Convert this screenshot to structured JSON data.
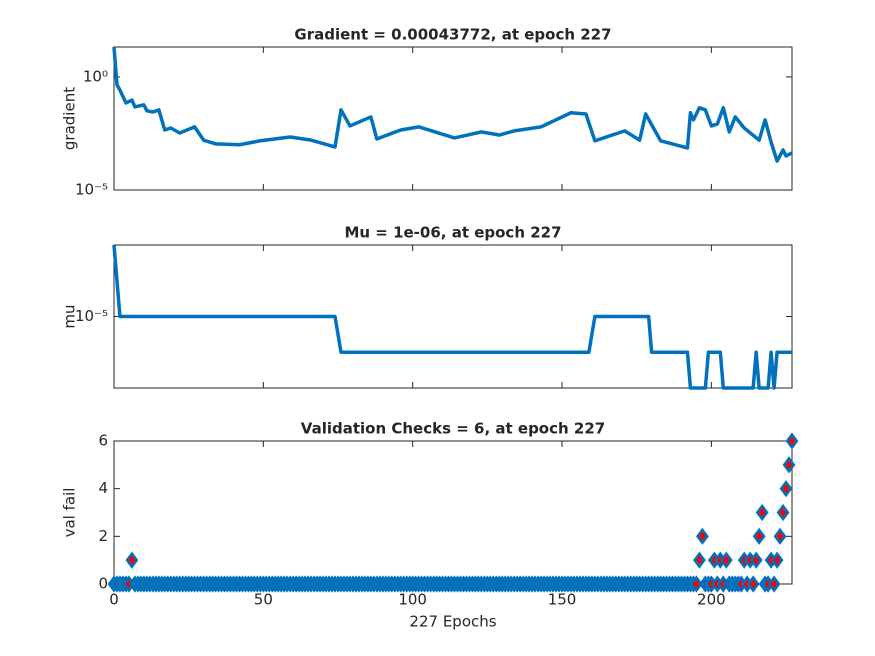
{
  "chart_data": [
    {
      "type": "line",
      "title": "Gradient = 0.00043772, at epoch 227",
      "ylabel": "gradient",
      "log": true,
      "color": "#0072BD",
      "xlim": [
        0,
        227
      ],
      "xticks": [
        0,
        50,
        100,
        150,
        200
      ],
      "xtick_labels": false,
      "ylim": [
        1e-05,
        21
      ],
      "yticks": [
        {
          "value": 1e-05,
          "label": "10⁻⁵"
        },
        {
          "value": 1,
          "label": "10⁰"
        }
      ],
      "x": [
        0,
        1,
        2,
        4,
        6,
        7,
        10,
        11,
        13,
        15,
        17,
        19,
        22,
        27,
        30,
        34,
        42,
        49,
        59,
        66,
        74,
        76,
        79,
        86,
        88,
        96,
        102,
        114,
        123,
        129,
        134,
        143,
        153,
        158,
        161,
        171,
        176,
        178,
        183,
        192,
        193,
        194,
        196,
        198,
        200,
        202,
        204,
        206,
        208,
        211,
        216,
        218,
        220,
        222,
        224,
        225,
        227
      ],
      "values": [
        21,
        0.45,
        0.26,
        0.071,
        0.095,
        0.047,
        0.058,
        0.032,
        0.028,
        0.035,
        0.0045,
        0.0055,
        0.0033,
        0.0062,
        0.0016,
        0.0011,
        0.001,
        0.0015,
        0.0022,
        0.0016,
        0.0008,
        0.035,
        0.0068,
        0.017,
        0.0018,
        0.0045,
        0.0062,
        0.002,
        0.0037,
        0.0027,
        0.0041,
        0.0062,
        0.026,
        0.023,
        0.0015,
        0.0041,
        0.0016,
        0.023,
        0.0015,
        0.00072,
        0.026,
        0.0126,
        0.043,
        0.035,
        0.0068,
        0.0083,
        0.043,
        0.0037,
        0.017,
        0.0055,
        0.0016,
        0.0126,
        0.0013,
        0.00019,
        0.00059,
        0.00032,
        0.00043772
      ]
    },
    {
      "type": "line",
      "title": "Mu = 1e-06, at epoch 227",
      "ylabel": "mu",
      "log": true,
      "color": "#0072BD",
      "xlim": [
        0,
        227
      ],
      "xticks": [
        0,
        50,
        100,
        150,
        200
      ],
      "xtick_labels": false,
      "ylim": [
        1e-07,
        0.001
      ],
      "yticks": [
        {
          "value": 1e-05,
          "label": "10⁻⁵"
        }
      ],
      "x": [
        0,
        2,
        74,
        76,
        159,
        161,
        179,
        180,
        192,
        193,
        198,
        199,
        203,
        204,
        214,
        215,
        216,
        219,
        220,
        221,
        222,
        227
      ],
      "values": [
        0.001,
        1e-05,
        1e-05,
        1e-06,
        1e-06,
        1e-05,
        1e-05,
        1e-06,
        1e-06,
        1e-07,
        1e-07,
        1e-06,
        1e-06,
        1e-07,
        1e-07,
        1e-06,
        1e-07,
        1e-07,
        1e-06,
        1e-07,
        1e-06,
        1e-06
      ]
    },
    {
      "type": "scatter",
      "title": "Validation Checks = 6, at epoch 227",
      "ylabel": "val fail",
      "xlabel": "227 Epochs",
      "log": false,
      "color": "#0072BD",
      "marker_face": "#FF0000",
      "xlim": [
        0,
        227
      ],
      "xticks": [
        0,
        50,
        100,
        150,
        200
      ],
      "xtick_labels": true,
      "ylim": [
        0,
        6
      ],
      "yticks": [
        0,
        2,
        4,
        6
      ],
      "x": [
        0,
        1,
        2,
        3,
        4,
        5,
        6,
        7,
        8,
        9,
        10,
        11,
        12,
        13,
        14,
        15,
        16,
        17,
        18,
        19,
        20,
        21,
        22,
        23,
        24,
        25,
        26,
        27,
        28,
        29,
        30,
        31,
        32,
        33,
        34,
        35,
        36,
        37,
        38,
        39,
        40,
        41,
        42,
        43,
        44,
        45,
        46,
        47,
        48,
        49,
        50,
        51,
        52,
        53,
        54,
        55,
        56,
        57,
        58,
        59,
        60,
        61,
        62,
        63,
        64,
        65,
        66,
        67,
        68,
        69,
        70,
        71,
        72,
        73,
        74,
        75,
        76,
        77,
        78,
        79,
        80,
        81,
        82,
        83,
        84,
        85,
        86,
        87,
        88,
        89,
        90,
        91,
        92,
        93,
        94,
        95,
        96,
        97,
        98,
        99,
        100,
        101,
        102,
        103,
        104,
        105,
        106,
        107,
        108,
        109,
        110,
        111,
        112,
        113,
        114,
        115,
        116,
        117,
        118,
        119,
        120,
        121,
        122,
        123,
        124,
        125,
        126,
        127,
        128,
        129,
        130,
        131,
        132,
        133,
        134,
        135,
        136,
        137,
        138,
        139,
        140,
        141,
        142,
        143,
        144,
        145,
        146,
        147,
        148,
        149,
        150,
        151,
        152,
        153,
        154,
        155,
        156,
        157,
        158,
        159,
        160,
        161,
        162,
        163,
        164,
        165,
        166,
        167,
        168,
        169,
        170,
        171,
        172,
        173,
        174,
        175,
        176,
        177,
        178,
        179,
        180,
        181,
        182,
        183,
        184,
        185,
        186,
        187,
        188,
        189,
        190,
        191,
        192,
        193,
        194,
        195,
        196,
        197,
        198,
        199,
        200,
        201,
        202,
        203,
        204,
        205,
        206,
        207,
        208,
        209,
        210,
        211,
        212,
        213,
        214,
        215,
        216,
        217,
        218,
        219,
        220,
        221,
        222,
        223,
        224,
        225,
        226,
        227
      ],
      "values": [
        0,
        0,
        0,
        0,
        0,
        0,
        1,
        0,
        0,
        0,
        0,
        0,
        0,
        0,
        0,
        0,
        0,
        0,
        0,
        0,
        0,
        0,
        0,
        0,
        0,
        0,
        0,
        0,
        0,
        0,
        0,
        0,
        0,
        0,
        0,
        0,
        0,
        0,
        0,
        0,
        0,
        0,
        0,
        0,
        0,
        0,
        0,
        0,
        0,
        0,
        0,
        0,
        0,
        0,
        0,
        0,
        0,
        0,
        0,
        0,
        0,
        0,
        0,
        0,
        0,
        0,
        0,
        0,
        0,
        0,
        0,
        0,
        0,
        0,
        0,
        0,
        0,
        0,
        0,
        0,
        0,
        0,
        0,
        0,
        0,
        0,
        0,
        0,
        0,
        0,
        0,
        0,
        0,
        0,
        0,
        0,
        0,
        0,
        0,
        0,
        0,
        0,
        0,
        0,
        0,
        0,
        0,
        0,
        0,
        0,
        0,
        0,
        0,
        0,
        0,
        0,
        0,
        0,
        0,
        0,
        0,
        0,
        0,
        0,
        0,
        0,
        0,
        0,
        0,
        0,
        0,
        0,
        0,
        0,
        0,
        0,
        0,
        0,
        0,
        0,
        0,
        0,
        0,
        0,
        0,
        0,
        0,
        0,
        0,
        0,
        0,
        0,
        0,
        0,
        0,
        0,
        0,
        0,
        0,
        0,
        0,
        0,
        0,
        0,
        0,
        0,
        0,
        0,
        0,
        0,
        0,
        0,
        0,
        0,
        0,
        0,
        0,
        0,
        0,
        0,
        0,
        0,
        0,
        0,
        0,
        0,
        0,
        0,
        0,
        0,
        0,
        0,
        0,
        0,
        0,
        0,
        1,
        2,
        0,
        0,
        0,
        1,
        0,
        1,
        0,
        1,
        0,
        0,
        0,
        0,
        0,
        1,
        0,
        1,
        0,
        1,
        2,
        3,
        0,
        0,
        1,
        0,
        1,
        2,
        3,
        4,
        5,
        6
      ]
    }
  ]
}
